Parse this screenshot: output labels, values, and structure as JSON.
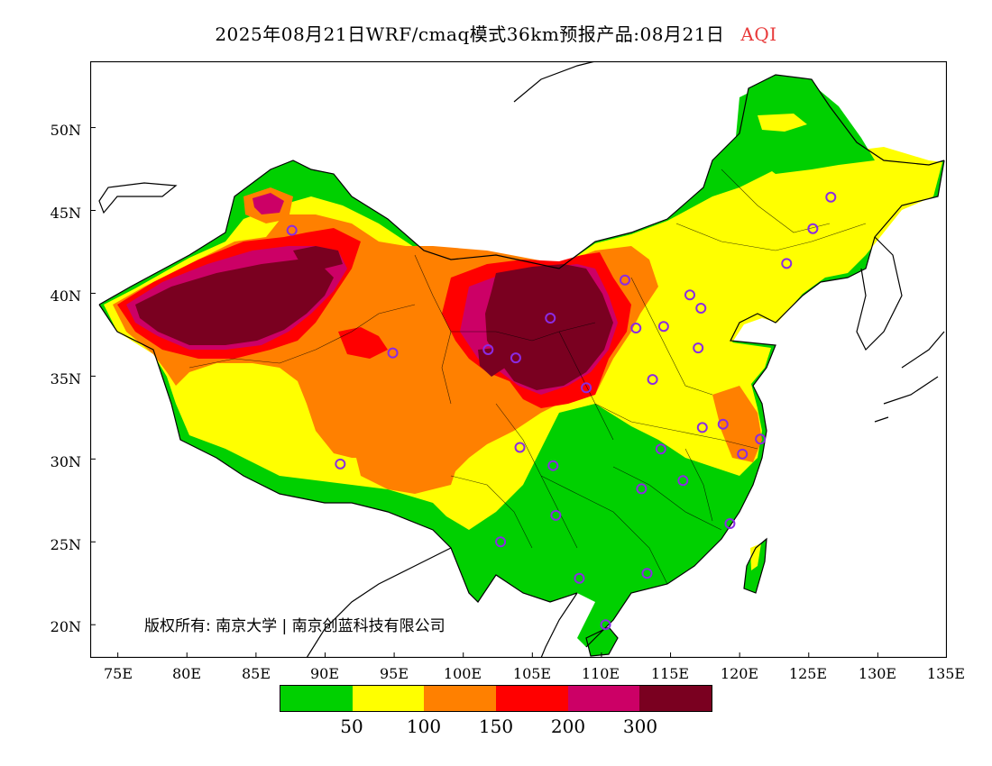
{
  "title": {
    "main": "2025年08月21日WRF/cmaq模式36km预报产品:08月21日",
    "variable": "AQI",
    "variable_color": "#e83a3a"
  },
  "axes": {
    "y_labels": [
      "50N",
      "45N",
      "40N",
      "35N",
      "30N",
      "25N",
      "20N"
    ],
    "x_labels": [
      "75E",
      "80E",
      "85E",
      "90E",
      "95E",
      "100E",
      "105E",
      "110E",
      "115E",
      "120E",
      "125E",
      "130E",
      "135E"
    ]
  },
  "copyright": "版权所有: 南京大学 | 南京创蓝科技有限公司",
  "legend": {
    "colors": [
      "#00d000",
      "#ffff00",
      "#ff8000",
      "#ff0000",
      "#cc0066",
      "#7a0020"
    ],
    "labels": [
      "50",
      "100",
      "150",
      "200",
      "300"
    ]
  },
  "map": {
    "extent_lon": [
      73,
      135
    ],
    "extent_lat": [
      18,
      54
    ],
    "station_color": "#8a2be2",
    "stations": [
      [
        87.6,
        43.8
      ],
      [
        91.1,
        29.7
      ],
      [
        94.9,
        36.4
      ],
      [
        101.8,
        36.6
      ],
      [
        103.8,
        36.1
      ],
      [
        106.3,
        38.5
      ],
      [
        108.9,
        34.3
      ],
      [
        111.7,
        40.8
      ],
      [
        112.5,
        37.9
      ],
      [
        114.5,
        38.0
      ],
      [
        116.4,
        39.9
      ],
      [
        117.2,
        39.1
      ],
      [
        123.4,
        41.8
      ],
      [
        125.3,
        43.9
      ],
      [
        126.6,
        45.8
      ],
      [
        117.0,
        36.7
      ],
      [
        113.7,
        34.8
      ],
      [
        117.3,
        31.9
      ],
      [
        118.8,
        32.1
      ],
      [
        121.5,
        31.2
      ],
      [
        120.2,
        30.3
      ],
      [
        114.3,
        30.6
      ],
      [
        112.9,
        28.2
      ],
      [
        115.9,
        28.7
      ],
      [
        119.3,
        26.1
      ],
      [
        106.5,
        29.6
      ],
      [
        104.1,
        30.7
      ],
      [
        106.7,
        26.6
      ],
      [
        102.7,
        25.0
      ],
      [
        108.4,
        22.8
      ],
      [
        113.3,
        23.1
      ],
      [
        110.3,
        20.0
      ]
    ]
  }
}
